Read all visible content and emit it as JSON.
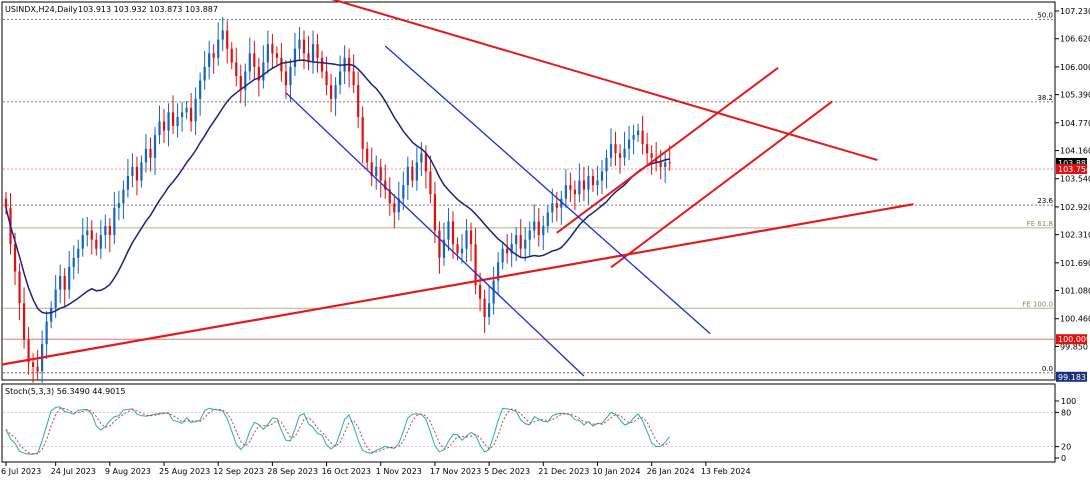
{
  "header": {
    "symbol": "USINDX,H24,Daily",
    "ohlc": "103.913 103.932 103.873 103.887"
  },
  "stoch_header": "Stoch(5,3,3) 56.3490 44.9015",
  "colors": {
    "bull": "#1565c0",
    "bear": "#e01010",
    "ma": "#1a237e",
    "channel_blue": "#1a2fd6",
    "trend_red": "#e41a1a",
    "fib_grid": "#555555",
    "fe_line": "#b5b08a",
    "stoch_main": "#20b2aa",
    "stoch_signal": "#e53935",
    "price_label_current": "#000000",
    "price_label_red": "#e01010",
    "price_label_navy": "#1c2f7a"
  },
  "chart_data": [
    {
      "type": "candlestick",
      "title": "USINDX,H24,Daily",
      "ylim": [
        99.2,
        107.23
      ],
      "x_index_range": [
        0,
        167
      ],
      "y_ticks": [
        "107.230",
        "106.620",
        "106.000",
        "105.390",
        "104.770",
        "104.160",
        "103.540",
        "102.920",
        "102.310",
        "101.690",
        "101.080",
        "100.460",
        "99.850"
      ],
      "x_ticks": [
        {
          "i": 0,
          "label": "6 Jul 2023"
        },
        {
          "i": 11,
          "label": "24 Jul 2023"
        },
        {
          "i": 23,
          "label": "9 Aug 2023"
        },
        {
          "i": 35,
          "label": "25 Aug 2023"
        },
        {
          "i": 47,
          "label": "12 Sep 2023"
        },
        {
          "i": 59,
          "label": "28 Sep 2023"
        },
        {
          "i": 71,
          "label": "16 Oct 2023"
        },
        {
          "i": 83,
          "label": "1 Nov 2023"
        },
        {
          "i": 95,
          "label": "17 Nov 2023"
        },
        {
          "i": 107,
          "label": "5 Dec 2023"
        },
        {
          "i": 119,
          "label": "21 Dec 2023"
        },
        {
          "i": 131,
          "label": "10 Jan 2024"
        },
        {
          "i": 143,
          "label": "26 Jan 2024"
        },
        {
          "i": 155,
          "label": "13 Feb 2024"
        }
      ],
      "closes": [
        102.9,
        102.1,
        101.5,
        100.8,
        100.0,
        99.5,
        99.4,
        99.3,
        99.9,
        100.4,
        100.7,
        101.1,
        101.4,
        101.1,
        101.6,
        101.8,
        102.0,
        102.3,
        102.4,
        102.2,
        102.0,
        102.3,
        102.5,
        102.3,
        102.9,
        103.0,
        103.3,
        103.6,
        103.8,
        103.5,
        103.9,
        104.2,
        104.0,
        104.5,
        104.8,
        104.6,
        105.0,
        104.7,
        104.9,
        105.0,
        105.1,
        104.8,
        105.3,
        105.7,
        106.0,
        106.3,
        106.2,
        106.6,
        106.8,
        106.4,
        106.1,
        105.8,
        105.5,
        105.9,
        106.3,
        106.0,
        105.7,
        106.1,
        106.5,
        106.3,
        106.2,
        105.9,
        105.6,
        106.0,
        106.4,
        106.6,
        106.3,
        106.1,
        106.5,
        106.2,
        105.9,
        105.6,
        105.3,
        105.6,
        105.9,
        106.2,
        105.9,
        105.6,
        104.9,
        104.2,
        103.9,
        103.6,
        103.8,
        103.5,
        103.3,
        103.0,
        102.8,
        103.1,
        103.4,
        103.8,
        103.5,
        103.9,
        104.1,
        103.7,
        103.2,
        102.4,
        101.8,
        102.2,
        102.6,
        102.1,
        101.9,
        102.0,
        102.4,
        102.1,
        101.2,
        100.9,
        100.5,
        100.8,
        101.3,
        101.7,
        102.0,
        101.9,
        102.1,
        102.3,
        102.0,
        102.2,
        102.4,
        102.6,
        102.3,
        102.5,
        102.8,
        103.0,
        102.9,
        103.1,
        103.4,
        103.3,
        103.2,
        103.5,
        103.3,
        103.6,
        103.4,
        103.5,
        103.7,
        104.0,
        104.3,
        104.1,
        104.0,
        104.2,
        104.4,
        104.5,
        104.6,
        104.3,
        104.1,
        104.0,
        103.9,
        103.8,
        103.9,
        103.887
      ],
      "series": [
        {
          "name": "",
          "kind": "moving-average"
        }
      ],
      "price_labels": [
        {
          "text": "103.887",
          "role": "current"
        },
        {
          "text": "103.754",
          "role": "red"
        },
        {
          "text": "100.009",
          "role": "red"
        },
        {
          "text": "99.183",
          "role": "navy"
        }
      ],
      "fib_levels": [
        {
          "label": "50.0",
          "price": 107.04
        },
        {
          "label": "38.2",
          "price": 105.23
        },
        {
          "label": "23.6",
          "price": 102.96
        },
        {
          "label": "0.0",
          "price": 99.27
        }
      ],
      "fe_levels": [
        {
          "label": "FE 61.8",
          "price": 102.46
        },
        {
          "label": "FE 100.0",
          "price": 100.69
        }
      ]
    },
    {
      "type": "line",
      "title": "Stoch(5,3,3) 56.3490 44.9015",
      "ylim": [
        0,
        100
      ],
      "y_ticks": [
        "100",
        "80",
        "20",
        "0"
      ],
      "series": [
        {
          "name": "",
          "kind": "main"
        },
        {
          "name": "",
          "kind": "signal"
        }
      ]
    }
  ]
}
